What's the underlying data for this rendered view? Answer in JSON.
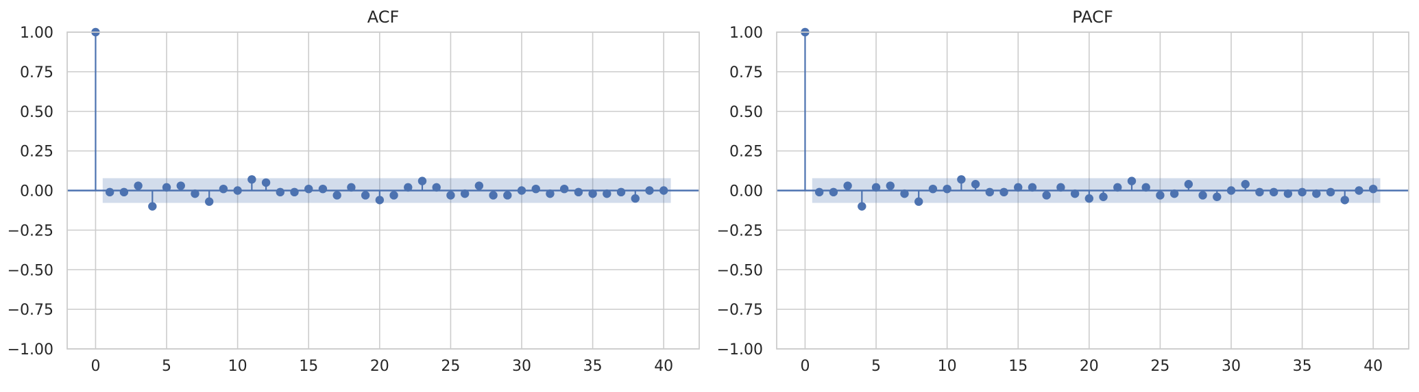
{
  "chart_data": [
    {
      "type": "stem",
      "title": "ACF",
      "xlabel": "",
      "ylabel": "",
      "xlim": [
        -2,
        42.5
      ],
      "ylim": [
        -1.0,
        1.0
      ],
      "xticks": [
        0,
        5,
        10,
        15,
        20,
        25,
        30,
        35,
        40
      ],
      "yticks": [
        1.0,
        0.75,
        0.5,
        0.25,
        0.0,
        -0.25,
        -0.5,
        -0.75,
        -1.0
      ],
      "ytick_labels": [
        "1.00",
        "0.75",
        "0.50",
        "0.25",
        "0.00",
        "−0.25",
        "−0.50",
        "−0.75",
        "−1.00"
      ],
      "grid": true,
      "color": "#4c72b0",
      "confidence_band": {
        "lower": -0.078,
        "upper": 0.078,
        "from_lag": 0.5,
        "to_lag": 40.5,
        "color": "#4c72b0"
      },
      "lags": [
        0,
        1,
        2,
        3,
        4,
        5,
        6,
        7,
        8,
        9,
        10,
        11,
        12,
        13,
        14,
        15,
        16,
        17,
        18,
        19,
        20,
        21,
        22,
        23,
        24,
        25,
        26,
        27,
        28,
        29,
        30,
        31,
        32,
        33,
        34,
        35,
        36,
        37,
        38,
        39,
        40
      ],
      "values": [
        1.0,
        -0.01,
        -0.01,
        0.03,
        -0.1,
        0.02,
        0.03,
        -0.02,
        -0.07,
        0.01,
        0.0,
        0.07,
        0.05,
        -0.01,
        -0.01,
        0.01,
        0.01,
        -0.03,
        0.02,
        -0.03,
        -0.06,
        -0.03,
        0.02,
        0.06,
        0.02,
        -0.03,
        -0.02,
        0.03,
        -0.03,
        -0.03,
        0.0,
        0.01,
        -0.02,
        0.01,
        -0.01,
        -0.02,
        -0.02,
        -0.01,
        -0.05,
        0.0,
        0.0
      ]
    },
    {
      "type": "stem",
      "title": "PACF",
      "xlabel": "",
      "ylabel": "",
      "xlim": [
        -2,
        42.5
      ],
      "ylim": [
        -1.0,
        1.0
      ],
      "xticks": [
        0,
        5,
        10,
        15,
        20,
        25,
        30,
        35,
        40
      ],
      "yticks": [
        1.0,
        0.75,
        0.5,
        0.25,
        0.0,
        -0.25,
        -0.5,
        -0.75,
        -1.0
      ],
      "ytick_labels": [
        "1.00",
        "0.75",
        "0.50",
        "0.25",
        "0.00",
        "−0.25",
        "−0.50",
        "−0.75",
        "−1.00"
      ],
      "grid": true,
      "color": "#4c72b0",
      "confidence_band": {
        "lower": -0.078,
        "upper": 0.078,
        "from_lag": 0.5,
        "to_lag": 40.5,
        "color": "#4c72b0"
      },
      "lags": [
        0,
        1,
        2,
        3,
        4,
        5,
        6,
        7,
        8,
        9,
        10,
        11,
        12,
        13,
        14,
        15,
        16,
        17,
        18,
        19,
        20,
        21,
        22,
        23,
        24,
        25,
        26,
        27,
        28,
        29,
        30,
        31,
        32,
        33,
        34,
        35,
        36,
        37,
        38,
        39,
        40
      ],
      "values": [
        1.0,
        -0.01,
        -0.01,
        0.03,
        -0.1,
        0.02,
        0.03,
        -0.02,
        -0.07,
        0.01,
        0.01,
        0.07,
        0.04,
        -0.01,
        -0.01,
        0.02,
        0.02,
        -0.03,
        0.02,
        -0.02,
        -0.05,
        -0.04,
        0.02,
        0.06,
        0.02,
        -0.03,
        -0.02,
        0.04,
        -0.03,
        -0.04,
        0.0,
        0.04,
        -0.01,
        -0.01,
        -0.02,
        -0.01,
        -0.02,
        -0.01,
        -0.06,
        0.0,
        0.01
      ]
    }
  ]
}
